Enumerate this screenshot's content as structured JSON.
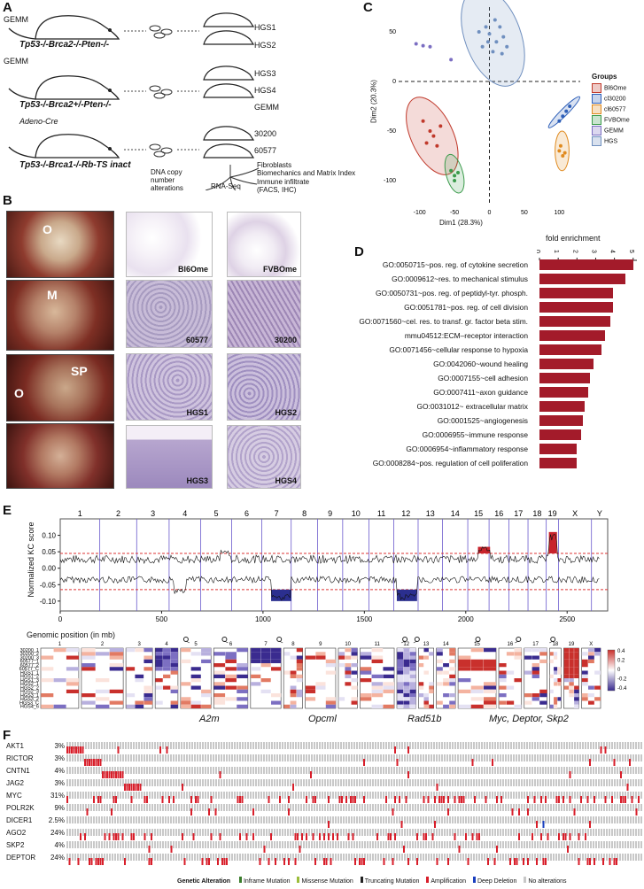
{
  "panels": {
    "A": "A",
    "B": "B",
    "C": "C",
    "D": "D",
    "E": "E",
    "F": "F"
  },
  "panelA": {
    "gemm1": "GEMM",
    "geno1": "Tp53-/-Brca2-/-Pten-/-",
    "gemm2": "GEMM",
    "geno2": "Tp53-/-Brca2+/-Pten-/-",
    "adeno": "Adeno-Cre",
    "geno3": "Tp53-/-Brca1-/-Rb-TS inact",
    "lines": [
      "HGS1",
      "HGS2",
      "HGS3",
      "HGS4",
      "GEMM",
      "30200",
      "60577"
    ],
    "outputs": [
      "DNA copy number alterations",
      "RNA-Seq",
      "Fibroblasts",
      "Biomechanics and Matrix Index",
      "Immune infiltrate (FACS, IHC)"
    ]
  },
  "panelB": {
    "photo_labels": [
      "O",
      "M",
      "SP",
      "O"
    ],
    "hist_labels": [
      "Bl6Ome",
      "FVBOme",
      "60577",
      "30200",
      "HGS1",
      "HGS2",
      "HGS3",
      "HGS4"
    ]
  },
  "panelC": {
    "xlabel": "Dim1 (28.3%)",
    "ylabel": "Dim2 (20.3%)",
    "xticks": [
      "-100",
      "-50",
      "0",
      "50",
      "100"
    ],
    "yticks": [
      "50",
      "0",
      "-50",
      "-100"
    ],
    "legend_title": "Groups",
    "groups": [
      {
        "name": "Bl6Ome",
        "color": "#c0392b"
      },
      {
        "name": "cl30200",
        "color": "#2e5fb8"
      },
      {
        "name": "cl60577",
        "color": "#e08a1e"
      },
      {
        "name": "FVBOme",
        "color": "#3a9a4a"
      },
      {
        "name": "GEMM",
        "color": "#7b6ec2"
      },
      {
        "name": "HGS",
        "color": "#6f8fbf"
      }
    ]
  },
  "chart_data": [
    {
      "type": "scatter",
      "title": "",
      "xlabel": "Dim1 (28.3%)",
      "ylabel": "Dim2 (20.3%)",
      "xlim": [
        -130,
        130
      ],
      "ylim": [
        -125,
        75
      ],
      "series": [
        {
          "name": "HGS",
          "points": [
            [
              -5,
              55
            ],
            [
              0,
              48
            ],
            [
              10,
              40
            ],
            [
              -10,
              35
            ],
            [
              20,
              45
            ],
            [
              5,
              30
            ],
            [
              15,
              55
            ],
            [
              -15,
              50
            ],
            [
              25,
              35
            ],
            [
              8,
              62
            ],
            [
              -2,
              40
            ],
            [
              18,
              28
            ]
          ]
        },
        {
          "name": "GEMM",
          "points": [
            [
              -105,
              38
            ],
            [
              -95,
              36
            ],
            [
              -85,
              35
            ],
            [
              -55,
              22
            ]
          ]
        },
        {
          "name": "Bl6Ome",
          "points": [
            [
              -95,
              -40
            ],
            [
              -85,
              -50
            ],
            [
              -80,
              -55
            ],
            [
              -70,
              -45
            ],
            [
              -75,
              -65
            ],
            [
              -90,
              -62
            ]
          ]
        },
        {
          "name": "FVBOme",
          "points": [
            [
              -55,
              -90
            ],
            [
              -50,
              -95
            ],
            [
              -45,
              -92
            ],
            [
              -50,
              -100
            ]
          ]
        },
        {
          "name": "cl30200",
          "points": [
            [
              105,
              -35
            ],
            [
              110,
              -30
            ],
            [
              115,
              -25
            ],
            [
              100,
              -40
            ]
          ]
        },
        {
          "name": "cl60577",
          "points": [
            [
              100,
              -70
            ],
            [
              105,
              -75
            ],
            [
              102,
              -65
            ],
            [
              108,
              -72
            ]
          ]
        }
      ]
    },
    {
      "type": "bar",
      "title": "fold enrichment",
      "xticks": [
        "0",
        "1",
        "2",
        "3",
        "4",
        "5"
      ],
      "xlim": [
        0,
        5.2
      ],
      "categories": [
        "GO:0050715~pos. reg. of cytokine secretion",
        "GO:0009612~res. to mechanical stimulus",
        "GO:0050731~pos. reg. of peptidyl-tyr. phosph.",
        "GO:0051781~pos. reg. of cell division",
        "GO:0071560~cel. res. to transf. gr. factor beta stim.",
        "mmu04512:ECM–receptor interaction",
        "GO:0071456~cellular response to hypoxia",
        "GO:0042060~wound healing",
        "GO:0007155~cell adhesion",
        "GO:0007411~axon guidance",
        "GO:0031012~ extracellular matrix",
        "GO:0001525~angiogenesis",
        "GO:0006955~immune response",
        "GO:0006954~inflammatory response",
        "GO:0008284~pos. regulation of cell poliferation"
      ],
      "values": [
        5.0,
        4.6,
        3.9,
        3.9,
        3.8,
        3.5,
        3.3,
        2.9,
        2.7,
        2.6,
        2.4,
        2.3,
        2.2,
        2.0,
        2.0
      ]
    },
    {
      "type": "line",
      "title": "",
      "ylabel": "Normalized KC score",
      "xlabel": "Genomic position (in mb)",
      "xticks": [
        "0",
        "500",
        "1000",
        "1500",
        "2000",
        "2500"
      ],
      "yticks": [
        "0.10",
        "0.05",
        "0.00",
        "-0.05",
        "-0.10"
      ],
      "xlim": [
        0,
        2700
      ],
      "ylim": [
        -0.13,
        0.15
      ],
      "chromosomes": [
        "1",
        "2",
        "3",
        "4",
        "5",
        "6",
        "7",
        "8",
        "9",
        "10",
        "11",
        "12",
        "13",
        "14",
        "15",
        "16",
        "17",
        "18",
        "19",
        "X",
        "Y"
      ]
    }
  ],
  "panelE": {
    "heat_samples": [
      "30200_1",
      "30200_2",
      "30200_3",
      "60577_1",
      "60577_2",
      "60577_C",
      "HGS1_1",
      "HGS1_2",
      "HGS1_3",
      "HGS2_1",
      "HGS2_2",
      "HGS2_3",
      "HGS3_1",
      "HGS3_2",
      "HGS3_C",
      "HGS4_6"
    ],
    "heat_chroms": [
      "1",
      "2",
      "3",
      "4",
      "5",
      "6",
      "7",
      "8",
      "9",
      "10",
      "11",
      "12",
      "13",
      "14",
      "15",
      "16",
      "17",
      "18",
      "19",
      "X"
    ],
    "legend": [
      "0.4",
      "0.2",
      "0",
      "-0.2",
      "-0.4"
    ],
    "genes": [
      {
        "text": "A2m",
        "color": "#c0282e"
      },
      {
        "text": "Opcml",
        "color": "#5a6fc4"
      },
      {
        "text": "Rad51b",
        "color": "#5a6fc4"
      },
      {
        "text": "Myc, Deptor, Skp2",
        "color": "#c0282e"
      }
    ]
  },
  "panelF": {
    "genes": [
      {
        "name": "AKT1",
        "pct": "3%"
      },
      {
        "name": "RICTOR",
        "pct": "3%"
      },
      {
        "name": "CNTN1",
        "pct": "4%"
      },
      {
        "name": "JAG2",
        "pct": "3%"
      },
      {
        "name": "MYC",
        "pct": "31%"
      },
      {
        "name": "POLR2K",
        "pct": "9%"
      },
      {
        "name": "DICER1",
        "pct": "2.5%"
      },
      {
        "name": "AGO2",
        "pct": "24%"
      },
      {
        "name": "SKP2",
        "pct": "4%"
      },
      {
        "name": "DEPTOR",
        "pct": "24%"
      }
    ],
    "legend_title": "Genetic Alteration",
    "legend": [
      "Inframe Mutation",
      "Missense Mutation",
      "Truncating Mutation",
      "Amplification",
      "Deep Deletion",
      "No alterations"
    ]
  }
}
